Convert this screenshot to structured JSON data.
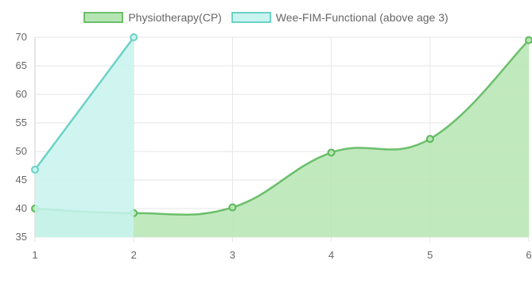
{
  "chart_data": {
    "type": "line",
    "x": [
      1,
      2,
      3,
      4,
      5,
      6
    ],
    "ylim": [
      35,
      70
    ],
    "yticks": [
      35,
      40,
      45,
      50,
      55,
      60,
      65,
      70
    ],
    "grid": true,
    "legend_position": "top",
    "series": [
      {
        "name": "Physiotherapy(CP)",
        "values": [
          40,
          39.2,
          40.2,
          49.8,
          52.2,
          69.5
        ],
        "line_color": "#6bbf6b",
        "fill_color": "#b6e5b3",
        "point_color": "#5cb85c"
      },
      {
        "name": "Wee-FIM-Functional (above age 3)",
        "values": [
          46.8,
          70,
          null,
          null,
          null,
          null
        ],
        "line_color": "#6cd2c6",
        "fill_color": "#c8f3ef",
        "point_color": "#6cd2c6"
      }
    ]
  }
}
